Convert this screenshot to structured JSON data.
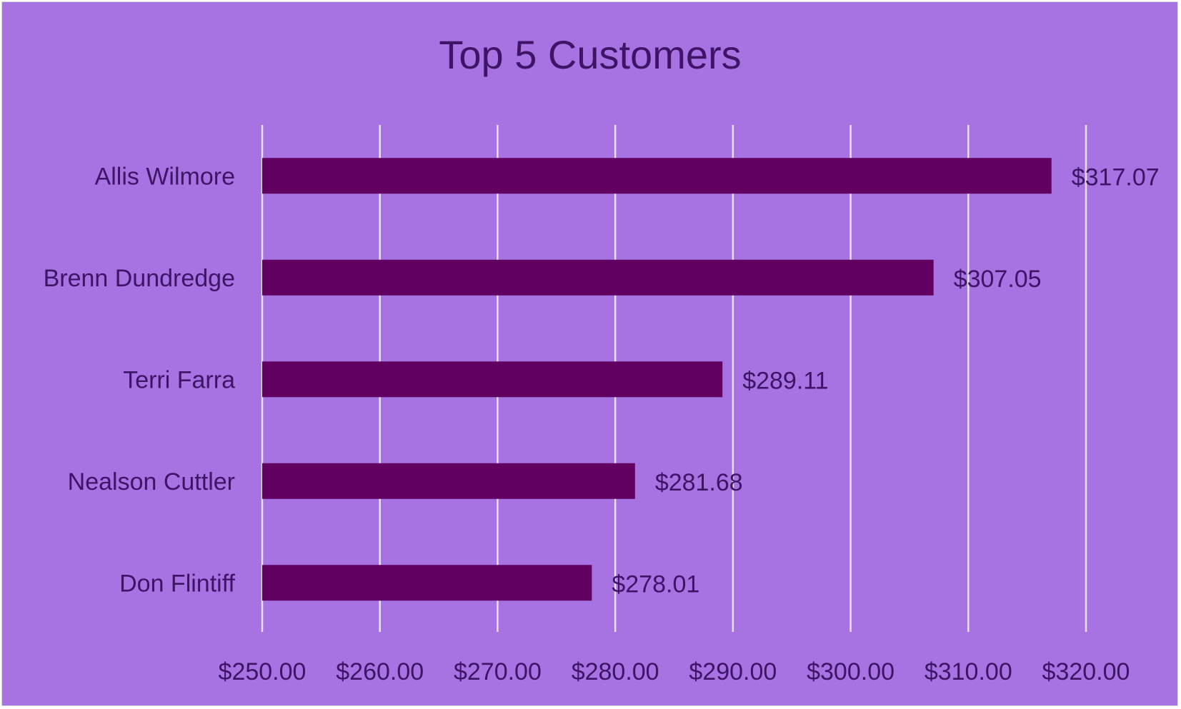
{
  "chart_data": {
    "type": "bar",
    "orientation": "horizontal",
    "title": "Top 5 Customers",
    "categories": [
      "Allis Wilmore",
      "Brenn Dundredge",
      "Terri Farra",
      "Nealson Cuttler",
      "Don Flintiff"
    ],
    "values": [
      317.07,
      307.05,
      289.11,
      281.68,
      278.01
    ],
    "data_labels": [
      "$317.07",
      "$307.05",
      "$289.11",
      "$281.68",
      "$278.01"
    ],
    "xlim": [
      250,
      320
    ],
    "x_ticks": [
      250,
      260,
      270,
      280,
      290,
      300,
      310,
      320
    ],
    "x_tick_labels": [
      "$250.00",
      "$260.00",
      "$270.00",
      "$280.00",
      "$290.00",
      "$300.00",
      "$310.00",
      "$320.00"
    ],
    "xlabel": "",
    "ylabel": "",
    "grid": "vertical",
    "legend": "none",
    "colors": {
      "background": "#a773e2",
      "bar": "#610061",
      "gridline": "#e8e0f2",
      "text": "#3d1466",
      "title": "#3d1466"
    }
  }
}
